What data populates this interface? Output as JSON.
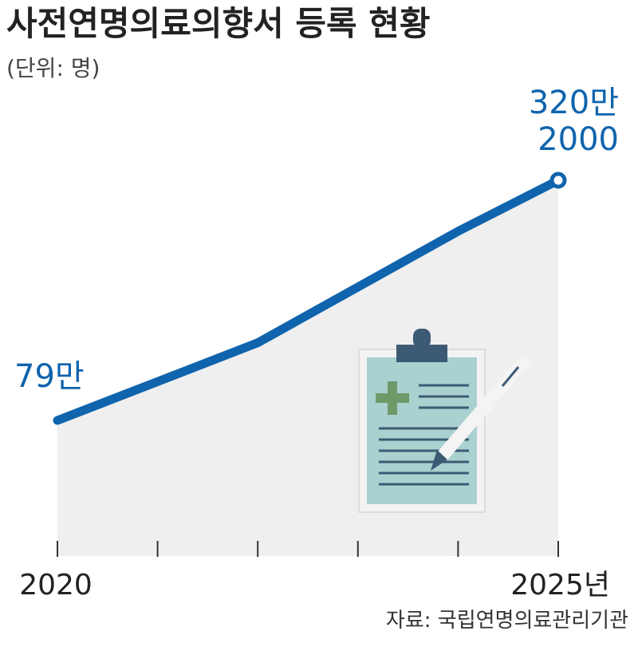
{
  "chart_data": {
    "type": "line",
    "title": "사전연명의료의향서 등록 현황",
    "subtitle": "(단위: 명)",
    "source": "자료: 국립연명의료관리기관",
    "categories": [
      "2020",
      null,
      null,
      null,
      null,
      "2025년"
    ],
    "values": [
      790000,
      1180000,
      1570000,
      2130000,
      2690000,
      3202000
    ],
    "value_labels": [
      "79만",
      null,
      null,
      null,
      null,
      "320만\n2000"
    ],
    "color": "#0f64ad",
    "area_color": "#efefef"
  }
}
